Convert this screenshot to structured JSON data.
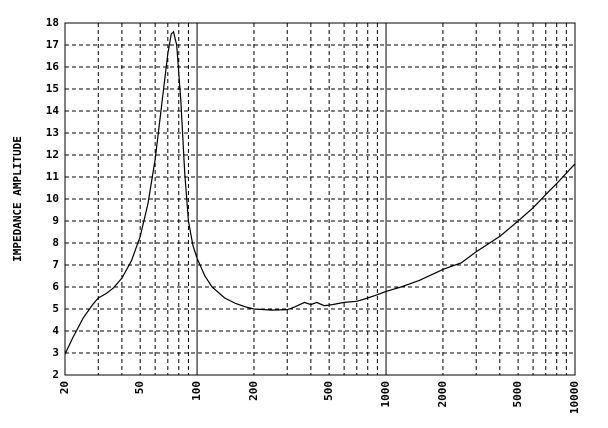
{
  "chart_data": {
    "type": "line",
    "y_label": "IMPEDANCE AMPLITUDE",
    "x": [
      20,
      22,
      25,
      28,
      30,
      33,
      36,
      40,
      45,
      50,
      55,
      60,
      65,
      70,
      73,
      75,
      78,
      82,
      86,
      90,
      95,
      100,
      110,
      120,
      140,
      160,
      180,
      200,
      250,
      300,
      330,
      370,
      400,
      430,
      470,
      520,
      600,
      700,
      800,
      900,
      1000,
      1200,
      1500,
      2000,
      2500,
      3000,
      4000,
      5000,
      6000,
      7000,
      8000,
      10000
    ],
    "values": [
      2.95,
      3.7,
      4.6,
      5.2,
      5.5,
      5.7,
      5.95,
      6.4,
      7.2,
      8.3,
      9.8,
      11.8,
      14.3,
      16.6,
      17.5,
      17.6,
      17.0,
      14.5,
      11.2,
      9.0,
      7.9,
      7.3,
      6.5,
      6.0,
      5.5,
      5.25,
      5.1,
      5.0,
      4.95,
      4.97,
      5.1,
      5.3,
      5.2,
      5.3,
      5.15,
      5.2,
      5.3,
      5.35,
      5.5,
      5.65,
      5.8,
      6.0,
      6.3,
      6.8,
      7.1,
      7.6,
      8.3,
      9.0,
      9.6,
      10.2,
      10.7,
      11.6
    ],
    "color": "#000000",
    "xscale": "log",
    "xlim": [
      20,
      10000
    ],
    "xticks": [
      20,
      50,
      100,
      200,
      500,
      1000,
      2000,
      5000,
      10000
    ],
    "x_minor_grid": [
      30,
      40,
      60,
      70,
      80,
      90,
      300,
      400,
      600,
      700,
      800,
      900,
      3000,
      4000,
      6000,
      7000,
      8000,
      9000
    ],
    "ylim": [
      2,
      18
    ],
    "yticks": [
      2,
      3,
      4,
      5,
      6,
      7,
      8,
      9,
      10,
      11,
      12,
      13,
      14,
      15,
      16,
      17,
      18
    ],
    "grid": true
  }
}
